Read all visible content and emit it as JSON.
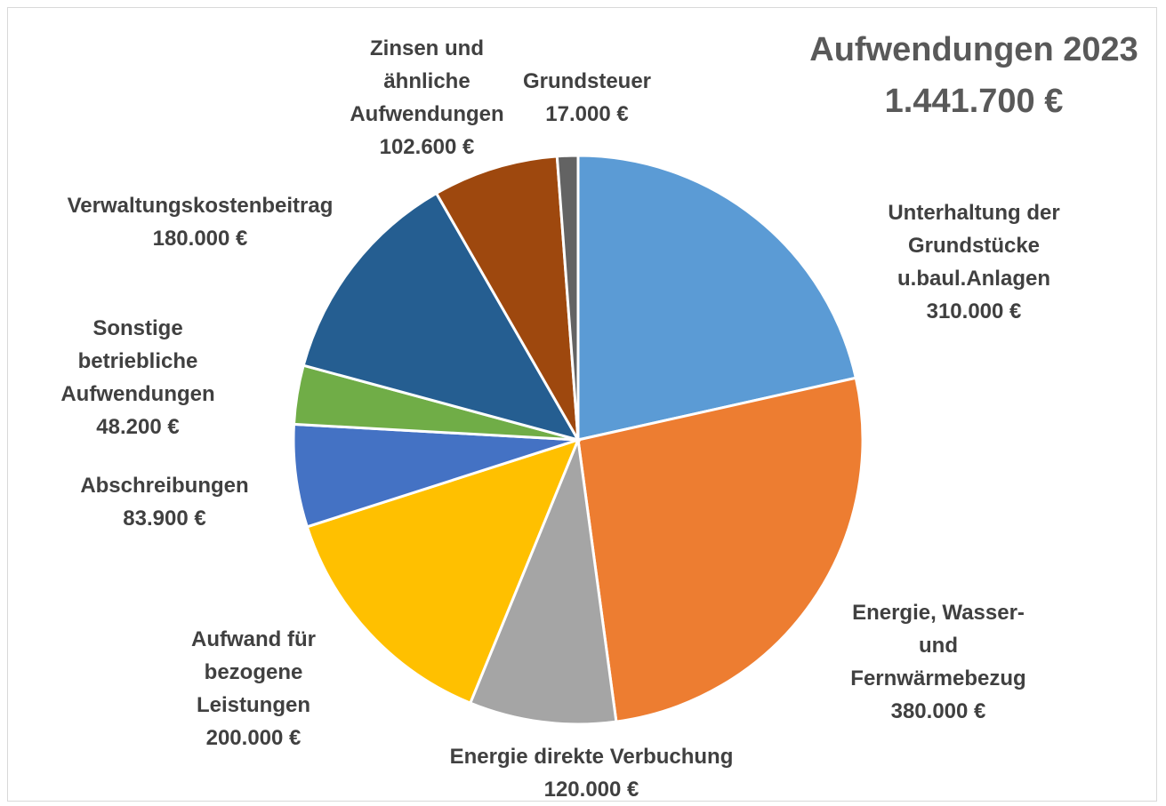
{
  "chart_data": {
    "type": "pie",
    "title": "Aufwendungen 2023",
    "subtitle": "1.441.700 €",
    "categories": [
      "Unterhaltung der Grundstücke u.baul.Anlagen",
      "Energie, Wasser- und Fernwärmebezug",
      "Energie direkte Verbuchung",
      "Aufwand für bezogene Leistungen",
      "Abschreibungen",
      "Sonstige betriebliche Aufwendungen",
      "Verwaltungskostenbeitrag",
      "Zinsen und ähnliche Aufwendungen",
      "Grundsteuer"
    ],
    "values": [
      310000,
      380000,
      120000,
      200000,
      83900,
      48200,
      180000,
      102600,
      17000
    ],
    "value_labels": [
      "310.000 €",
      "380.000 €",
      "120.000 €",
      "200.000 €",
      "83.900 €",
      "48.200 €",
      "180.000 €",
      "102.600 €",
      "17.000 €"
    ],
    "colors": [
      "#5b9bd5",
      "#ed7d31",
      "#a5a5a5",
      "#ffc000",
      "#4472c4",
      "#70ad47",
      "#255e91",
      "#9e480e",
      "#636363"
    ]
  }
}
